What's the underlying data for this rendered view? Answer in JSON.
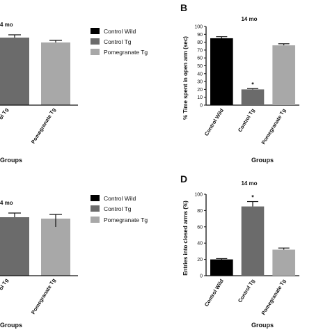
{
  "colors": {
    "control_wild": "#000000",
    "control_tg": "#6b6b6b",
    "pomegranate_tg": "#a8a8a8"
  },
  "legend": {
    "top": [
      "Control Wild",
      "Control Tg",
      "Pomegranate Tg"
    ],
    "bottom": [
      "Control Wild",
      "Control Tg",
      "Pomegranate Tg"
    ]
  },
  "chart_data": [
    {
      "id": "top-left",
      "type": "bar",
      "title": "4 mo",
      "xlabel": "Groups",
      "categories": [
        "ol Tg",
        "Pomegranate Tg"
      ],
      "values": [
        null,
        null
      ],
      "errors": [
        null,
        null
      ]
    },
    {
      "id": "B",
      "panel": "B",
      "type": "bar",
      "title": "14 mo",
      "xlabel": "Groups",
      "ylabel": "% Time spent in open arm (sec)",
      "ylim": [
        0,
        100
      ],
      "ticks": [
        "0",
        "10",
        "20",
        "30",
        "40",
        "50",
        "60",
        "70",
        "80",
        "90",
        "100"
      ],
      "categories": [
        "Control Wild",
        "Control Tg",
        "Pomegranate Tg"
      ],
      "values": [
        85,
        20,
        76
      ],
      "errors": [
        2,
        1,
        2
      ],
      "annotations": [
        "",
        "*",
        ""
      ]
    },
    {
      "id": "bottom-left",
      "type": "bar",
      "title": "4 mo",
      "xlabel": "Groups",
      "categories": [
        "ol Tg",
        "Pomegranate Tg"
      ],
      "values": [
        null,
        null
      ],
      "errors": [
        null,
        null
      ]
    },
    {
      "id": "D",
      "panel": "D",
      "type": "bar",
      "title": "14 mo",
      "xlabel": "Groups",
      "ylabel": "Entries into closed arms (%)",
      "ylim": [
        0,
        100
      ],
      "ticks": [
        "0",
        "20",
        "40",
        "60",
        "80",
        "100"
      ],
      "categories": [
        "Control Wild",
        "Control Tg",
        "Pomegranate Tg"
      ],
      "values": [
        20,
        85,
        32
      ],
      "errors": [
        1,
        6,
        2
      ],
      "annotations": [
        "",
        "*",
        ""
      ]
    }
  ]
}
